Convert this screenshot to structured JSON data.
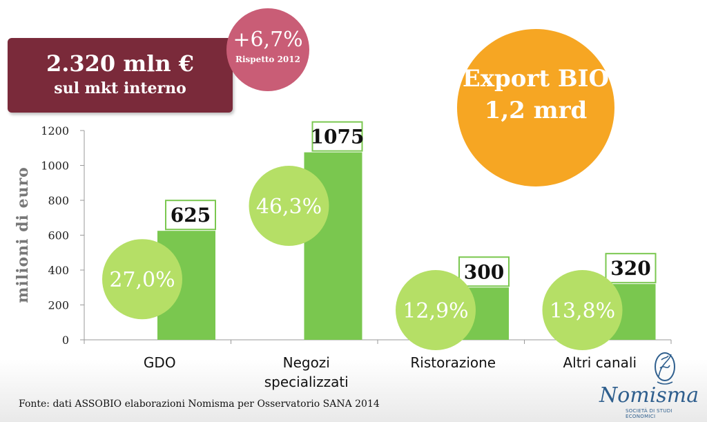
{
  "headline": {
    "value": "2.320 mln €",
    "subtitle": "sul mkt interno"
  },
  "growth": {
    "value": "+6,7%",
    "subtitle": "Rispetto 2012"
  },
  "export": {
    "line1": "Export BIO",
    "line2": "1,2 mrd"
  },
  "source": "Fonte:  dati ASSOBIO elaborazioni Nomisma per Osservatorio SANA 2014",
  "logo": {
    "name": "Nomisma",
    "tagline": "SOCIETÀ DI STUDI ECONOMICI"
  },
  "colors": {
    "bar": "#7ac74f",
    "circle": "#b5df66",
    "label_border": "#7ac74f",
    "headline": "#7a2a3a",
    "growth": "#c95d76",
    "export": "#f6a623"
  },
  "chart_data": {
    "type": "bar",
    "categories": [
      "GDO",
      "Negozi specializzati",
      "Ristorazione",
      "Altri canali"
    ],
    "category_lines": [
      [
        "GDO"
      ],
      [
        "Negozi",
        "specializzati"
      ],
      [
        "Ristorazione"
      ],
      [
        "Altri canali"
      ]
    ],
    "values": [
      625,
      1075,
      300,
      320
    ],
    "value_labels": [
      "625",
      "1075",
      "300",
      "320"
    ],
    "shares": [
      "27,0%",
      "46,3%",
      "12,9%",
      "13,8%"
    ],
    "ylabel": "milioni di euro",
    "ylim": [
      0,
      1200
    ],
    "yticks": [
      0,
      200,
      400,
      600,
      800,
      1000,
      1200
    ],
    "grid": false,
    "legend": "none"
  }
}
